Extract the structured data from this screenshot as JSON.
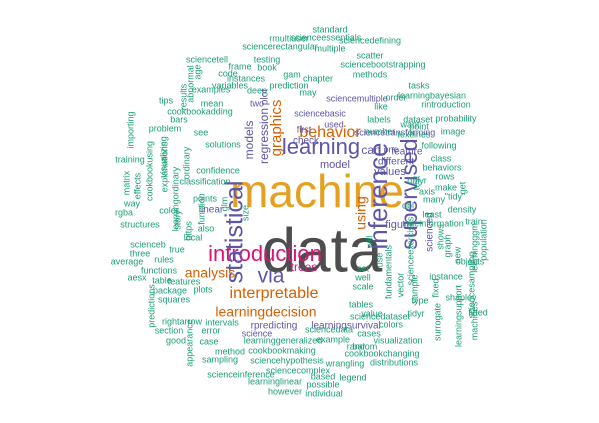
{
  "palette": {
    "gray": "#4d4d4d",
    "gold": "#e6a01f",
    "pink": "#d9127a",
    "orange": "#d95f02",
    "purple": "#5e55a6",
    "green": "#1b9e77"
  },
  "words": [
    {
      "text": "data",
      "color": "gray"
    },
    {
      "text": "machine",
      "color": "gold"
    },
    {
      "text": "introduction",
      "color": "pink"
    },
    {
      "text": "statistical",
      "color": "purple"
    },
    {
      "text": "inference",
      "color": "purple"
    },
    {
      "text": "supervised",
      "color": "purple"
    },
    {
      "text": "learning",
      "color": "purple"
    },
    {
      "text": "via",
      "color": "purple"
    },
    {
      "text": "interpretable",
      "color": "orange"
    },
    {
      "text": "behavior",
      "color": "orange"
    },
    {
      "text": "analysis",
      "color": "orange"
    },
    {
      "text": "learningdecision",
      "color": "orange"
    },
    {
      "text": "graphics",
      "color": "orange"
    },
    {
      "text": "using",
      "color": "orange"
    },
    {
      "text": "trees",
      "color": "pink"
    },
    {
      "text": "regression",
      "color": "purple"
    },
    {
      "text": "models",
      "color": "purple"
    },
    {
      "text": "can",
      "color": "purple"
    },
    {
      "text": "model",
      "color": "purple"
    },
    {
      "text": "values",
      "color": "purple"
    },
    {
      "text": "figure",
      "color": "purple"
    },
    {
      "text": "rpredicting",
      "color": "purple"
    },
    {
      "text": "learningsurvival",
      "color": "purple"
    },
    {
      "text": "science",
      "color": "purple"
    },
    {
      "text": "check",
      "color": "purple"
    },
    {
      "text": "plot",
      "color": "purple"
    },
    {
      "text": "linear",
      "color": "purple"
    },
    {
      "text": "scienced",
      "color": "purple"
    },
    {
      "text": "different",
      "color": "purple"
    },
    {
      "text": "sciencetransforming",
      "color": "purple"
    },
    {
      "text": "sciencebasic",
      "color": "purple"
    },
    {
      "text": "sciencemultiple",
      "color": "purple"
    },
    {
      "text": "used",
      "color": "purple"
    },
    {
      "text": "feature",
      "color": "purple"
    },
    {
      "text": "one",
      "color": "purple"
    },
    {
      "text": "first",
      "color": "purple"
    },
    {
      "text": "two",
      "color": "purple"
    },
    {
      "text": "solutions",
      "color": "green"
    },
    {
      "text": "confidence",
      "color": "green"
    },
    {
      "text": "classification",
      "color": "green"
    },
    {
      "text": "points",
      "color": "green"
    },
    {
      "text": "function",
      "color": "green"
    },
    {
      "text": "also",
      "color": "green"
    },
    {
      "text": "see",
      "color": "green"
    },
    {
      "text": "deep",
      "color": "green"
    },
    {
      "text": "instances",
      "color": "green"
    },
    {
      "text": "variables",
      "color": "green"
    },
    {
      "text": "mean",
      "color": "green"
    },
    {
      "text": "cookbookadding",
      "color": "green"
    },
    {
      "text": "examples",
      "color": "green"
    },
    {
      "text": "frame",
      "color": "green"
    },
    {
      "text": "code",
      "color": "green"
    },
    {
      "text": "sciencetell",
      "color": "green"
    },
    {
      "text": "sciencerectangular",
      "color": "green"
    },
    {
      "text": "rmultiuser",
      "color": "green"
    },
    {
      "text": "scienceessentials",
      "color": "green"
    },
    {
      "text": "sciencedefining",
      "color": "green"
    },
    {
      "text": "standard",
      "color": "green"
    },
    {
      "text": "multiple",
      "color": "green"
    },
    {
      "text": "testing",
      "color": "green"
    },
    {
      "text": "book",
      "color": "green"
    },
    {
      "text": "gam",
      "color": "green"
    },
    {
      "text": "chapter",
      "color": "green"
    },
    {
      "text": "scatter",
      "color": "green"
    },
    {
      "text": "sciencebootstrapping",
      "color": "green"
    },
    {
      "text": "methods",
      "color": "green"
    },
    {
      "text": "may",
      "color": "green"
    },
    {
      "text": "learningbayesian",
      "color": "green"
    },
    {
      "text": "tasks",
      "color": "green"
    },
    {
      "text": "rintroduction",
      "color": "green"
    },
    {
      "text": "order",
      "color": "green"
    },
    {
      "text": "like",
      "color": "green"
    },
    {
      "text": "labels",
      "color": "green"
    },
    {
      "text": "probability",
      "color": "green"
    },
    {
      "text": "dataset",
      "color": "green"
    },
    {
      "text": "image",
      "color": "green"
    },
    {
      "text": "point",
      "color": "green"
    },
    {
      "text": "want",
      "color": "green"
    },
    {
      "text": "number",
      "color": "green"
    },
    {
      "text": "textlines",
      "color": "green"
    },
    {
      "text": "following",
      "color": "green"
    },
    {
      "text": "class",
      "color": "green"
    },
    {
      "text": "behaviors",
      "color": "green"
    },
    {
      "text": "rows",
      "color": "green"
    },
    {
      "text": "dplyr",
      "color": "green"
    },
    {
      "text": "make",
      "color": "green"
    },
    {
      "text": "get",
      "color": "green"
    },
    {
      "text": "axis",
      "color": "green"
    },
    {
      "text": "many",
      "color": "green"
    },
    {
      "text": "\"tidy\"",
      "color": "green"
    },
    {
      "text": "least",
      "color": "green"
    },
    {
      "text": "density",
      "color": "green"
    },
    {
      "text": "timeinformation",
      "color": "green"
    },
    {
      "text": "train",
      "color": "green"
    },
    {
      "text": "dbl",
      "color": "green"
    },
    {
      "text": "test",
      "color": "green"
    },
    {
      "text": "new",
      "color": "green"
    },
    {
      "text": "graph",
      "color": "green"
    },
    {
      "text": "shows",
      "color": "green"
    },
    {
      "text": "learningggm",
      "color": "green"
    },
    {
      "text": "population",
      "color": "green"
    },
    {
      "text": "objects",
      "color": "green"
    },
    {
      "text": "instance",
      "color": "green"
    },
    {
      "text": "shapley",
      "color": "green"
    },
    {
      "text": "fitted",
      "color": "green"
    },
    {
      "text": "scienceexercises",
      "color": "green"
    },
    {
      "text": "sciencesampling",
      "color": "green"
    },
    {
      "text": "learningsupport",
      "color": "green"
    },
    {
      "text": "machines",
      "color": "green"
    },
    {
      "text": "surrogate",
      "color": "green"
    },
    {
      "text": "tidyr",
      "color": "green"
    },
    {
      "text": "type",
      "color": "green"
    },
    {
      "text": "vector",
      "color": "green"
    },
    {
      "text": "sample",
      "color": "green"
    },
    {
      "text": "fixed",
      "color": "green"
    },
    {
      "text": "visualization",
      "color": "green"
    },
    {
      "text": "cases",
      "color": "green"
    },
    {
      "text": "colors",
      "color": "green"
    },
    {
      "text": "example",
      "color": "green"
    },
    {
      "text": "cookbookchanging",
      "color": "green"
    },
    {
      "text": "distributions",
      "color": "green"
    },
    {
      "text": "wrangling",
      "color": "green"
    },
    {
      "text": "bar",
      "color": "green"
    },
    {
      "text": "random",
      "color": "green"
    },
    {
      "text": "sciencehypothesis",
      "color": "green"
    },
    {
      "text": "cookbookmaking",
      "color": "green"
    },
    {
      "text": "method",
      "color": "green"
    },
    {
      "text": "sampling",
      "color": "green"
    },
    {
      "text": "case",
      "color": "green"
    },
    {
      "text": "learninggeneralized",
      "color": "green"
    },
    {
      "text": "sciencedata",
      "color": "green"
    },
    {
      "text": "intervals",
      "color": "green"
    },
    {
      "text": "error",
      "color": "green"
    },
    {
      "text": "rightarrow",
      "color": "green"
    },
    {
      "text": "squares",
      "color": "green"
    },
    {
      "text": "plots",
      "color": "green"
    },
    {
      "text": "package",
      "color": "green"
    },
    {
      "text": "functions",
      "color": "green"
    },
    {
      "text": "rules",
      "color": "green"
    },
    {
      "text": "features",
      "color": "green"
    },
    {
      "text": "table",
      "color": "green"
    },
    {
      "text": "sciencedataset",
      "color": "green"
    },
    {
      "text": "sciencecomplex",
      "color": "green"
    },
    {
      "text": "scienceinference",
      "color": "green"
    },
    {
      "text": "learninglinear",
      "color": "green"
    },
    {
      "text": "based",
      "color": "green"
    },
    {
      "text": "legend",
      "color": "green"
    },
    {
      "text": "possible",
      "color": "green"
    },
    {
      "text": "however",
      "color": "green"
    },
    {
      "text": "individual",
      "color": "green"
    },
    {
      "text": "appearance",
      "color": "green"
    },
    {
      "text": "good",
      "color": "green"
    },
    {
      "text": "section",
      "color": "green"
    },
    {
      "text": "predictions",
      "color": "green"
    },
    {
      "text": "aesx",
      "color": "green"
    },
    {
      "text": "average",
      "color": "green"
    },
    {
      "text": "three",
      "color": "green"
    },
    {
      "text": "scienceb",
      "color": "green"
    },
    {
      "text": "true",
      "color": "green"
    },
    {
      "text": "structures",
      "color": "green"
    },
    {
      "text": "rgba",
      "color": "green"
    },
    {
      "text": "way",
      "color": "green"
    },
    {
      "text": "matrix",
      "color": "green"
    },
    {
      "text": "effects",
      "color": "green"
    },
    {
      "text": "training",
      "color": "green"
    },
    {
      "text": "importing",
      "color": "green"
    },
    {
      "text": "cookbookusing",
      "color": "green"
    },
    {
      "text": "visualizing",
      "color": "green"
    },
    {
      "text": "problem",
      "color": "green"
    },
    {
      "text": "explanations",
      "color": "green"
    },
    {
      "text": "tips",
      "color": "green"
    },
    {
      "text": "bars",
      "color": "green"
    },
    {
      "text": "ordinary",
      "color": "green"
    },
    {
      "text": "learningordinary",
      "color": "green"
    },
    {
      "text": "color",
      "color": "green"
    },
    {
      "text": "story",
      "color": "green"
    },
    {
      "text": "https",
      "color": "green"
    },
    {
      "text": "abnormal",
      "color": "green"
    },
    {
      "text": "age",
      "color": "green"
    },
    {
      "text": "results",
      "color": "green"
    },
    {
      "text": "prediction",
      "color": "green"
    },
    {
      "text": "local",
      "color": "green"
    },
    {
      "text": "glm",
      "color": "green"
    },
    {
      "text": "size",
      "color": "green"
    },
    {
      "text": "will",
      "color": "green"
    },
    {
      "text": "use",
      "color": "green"
    },
    {
      "text": "fundamentals",
      "color": "green"
    },
    {
      "text": "value",
      "color": "green"
    },
    {
      "text": "tables",
      "color": "green"
    },
    {
      "text": "scale",
      "color": "green"
    },
    {
      "text": "well",
      "color": "green"
    },
    {
      "text": "set",
      "color": "green"
    }
  ]
}
